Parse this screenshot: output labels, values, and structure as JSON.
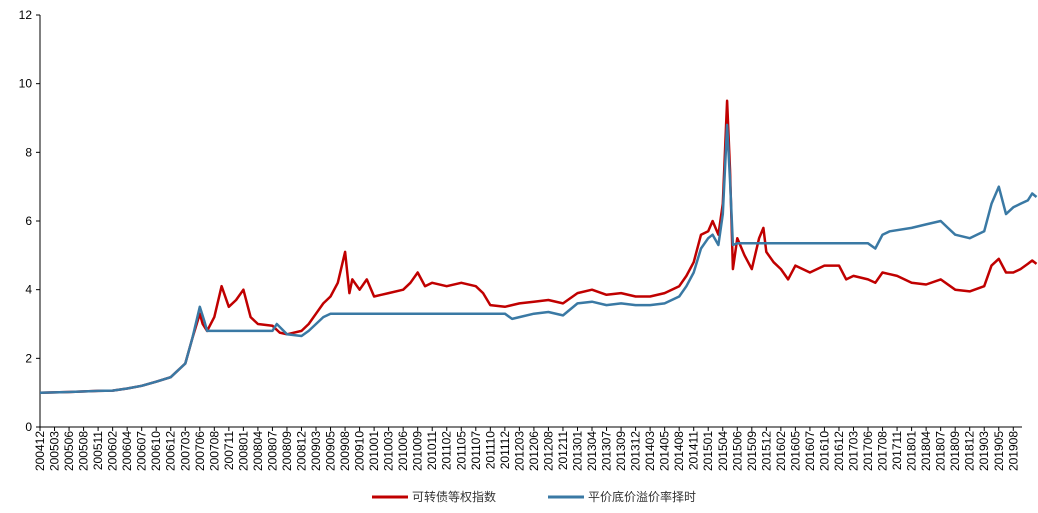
{
  "chart_data": {
    "type": "line",
    "title": "",
    "xlabel": "",
    "ylabel": "",
    "ylim": [
      0,
      12
    ],
    "yticks": [
      0,
      2,
      4,
      6,
      8,
      10,
      12
    ],
    "grid": false,
    "legend_position": "bottom",
    "x_ticks": [
      "200412",
      "200503",
      "200506",
      "200508",
      "200511",
      "200602",
      "200604",
      "200607",
      "200610",
      "200612",
      "200703",
      "200706",
      "200708",
      "200711",
      "200801",
      "200804",
      "200807",
      "200809",
      "200812",
      "200903",
      "200905",
      "200908",
      "200910",
      "201001",
      "201003",
      "201006",
      "201009",
      "201011",
      "201102",
      "201105",
      "201107",
      "201110",
      "201112",
      "201203",
      "201206",
      "201208",
      "201211",
      "201301",
      "201304",
      "201307",
      "201309",
      "201312",
      "201403",
      "201405",
      "201408",
      "201411",
      "201501",
      "201504",
      "201506",
      "201509",
      "201512",
      "201602",
      "201605",
      "201607",
      "201610",
      "201612",
      "201703",
      "201706",
      "201708",
      "201711",
      "201801",
      "201804",
      "201807",
      "201809",
      "201812",
      "201903",
      "201905",
      "201908"
    ],
    "series": [
      {
        "name": "可转债等权指数",
        "color": "#c00000",
        "points": [
          [
            0,
            1.0
          ],
          [
            2,
            1.02
          ],
          [
            4,
            1.05
          ],
          [
            5,
            1.06
          ],
          [
            6,
            1.12
          ],
          [
            7,
            1.2
          ],
          [
            8,
            1.32
          ],
          [
            9,
            1.45
          ],
          [
            10,
            1.85
          ],
          [
            10.5,
            2.6
          ],
          [
            11,
            3.3
          ],
          [
            11.2,
            3.0
          ],
          [
            11.5,
            2.8
          ],
          [
            12,
            3.2
          ],
          [
            12.5,
            4.1
          ],
          [
            13,
            3.5
          ],
          [
            13.5,
            3.7
          ],
          [
            14,
            4.0
          ],
          [
            14.5,
            3.2
          ],
          [
            15,
            3.0
          ],
          [
            16,
            2.95
          ],
          [
            16.5,
            2.75
          ],
          [
            17,
            2.7
          ],
          [
            18,
            2.8
          ],
          [
            18.5,
            3.0
          ],
          [
            19,
            3.3
          ],
          [
            19.5,
            3.6
          ],
          [
            20,
            3.8
          ],
          [
            20.5,
            4.2
          ],
          [
            21,
            5.1
          ],
          [
            21.3,
            3.9
          ],
          [
            21.5,
            4.3
          ],
          [
            22,
            4.0
          ],
          [
            22.5,
            4.3
          ],
          [
            23,
            3.8
          ],
          [
            24,
            3.9
          ],
          [
            25,
            4.0
          ],
          [
            25.5,
            4.2
          ],
          [
            26,
            4.5
          ],
          [
            26.5,
            4.1
          ],
          [
            27,
            4.2
          ],
          [
            28,
            4.1
          ],
          [
            29,
            4.2
          ],
          [
            30,
            4.1
          ],
          [
            30.5,
            3.9
          ],
          [
            31,
            3.55
          ],
          [
            32,
            3.5
          ],
          [
            33,
            3.6
          ],
          [
            34,
            3.65
          ],
          [
            35,
            3.7
          ],
          [
            36,
            3.6
          ],
          [
            37,
            3.9
          ],
          [
            38,
            4.0
          ],
          [
            39,
            3.85
          ],
          [
            40,
            3.9
          ],
          [
            41,
            3.8
          ],
          [
            42,
            3.8
          ],
          [
            43,
            3.9
          ],
          [
            44,
            4.1
          ],
          [
            44.5,
            4.4
          ],
          [
            45,
            4.8
          ],
          [
            45.5,
            5.6
          ],
          [
            46,
            5.7
          ],
          [
            46.3,
            6.0
          ],
          [
            46.7,
            5.6
          ],
          [
            47,
            6.5
          ],
          [
            47.3,
            9.5
          ],
          [
            47.5,
            7.5
          ],
          [
            47.7,
            4.6
          ],
          [
            48,
            5.5
          ],
          [
            48.5,
            5.0
          ],
          [
            49,
            4.6
          ],
          [
            49.5,
            5.5
          ],
          [
            49.8,
            5.8
          ],
          [
            50,
            5.1
          ],
          [
            50.5,
            4.8
          ],
          [
            51,
            4.6
          ],
          [
            51.5,
            4.3
          ],
          [
            52,
            4.7
          ],
          [
            53,
            4.5
          ],
          [
            54,
            4.7
          ],
          [
            55,
            4.7
          ],
          [
            55.5,
            4.3
          ],
          [
            56,
            4.4
          ],
          [
            57,
            4.3
          ],
          [
            57.5,
            4.2
          ],
          [
            58,
            4.5
          ],
          [
            59,
            4.4
          ],
          [
            60,
            4.2
          ],
          [
            61,
            4.15
          ],
          [
            62,
            4.3
          ],
          [
            63,
            4.0
          ],
          [
            64,
            3.95
          ],
          [
            65,
            4.1
          ],
          [
            65.5,
            4.7
          ],
          [
            66,
            4.9
          ],
          [
            66.5,
            4.5
          ],
          [
            67,
            4.5
          ],
          [
            67.5,
            4.6
          ],
          [
            68,
            4.75
          ],
          [
            68.3,
            4.85
          ],
          [
            68.6,
            4.75
          ]
        ]
      },
      {
        "name": "平价底价溢价率择时",
        "color": "#3a79a4",
        "points": [
          [
            0,
            1.0
          ],
          [
            2,
            1.02
          ],
          [
            4,
            1.05
          ],
          [
            5,
            1.06
          ],
          [
            6,
            1.12
          ],
          [
            7,
            1.2
          ],
          [
            8,
            1.32
          ],
          [
            9,
            1.45
          ],
          [
            10,
            1.85
          ],
          [
            10.5,
            2.6
          ],
          [
            11,
            3.5
          ],
          [
            11.3,
            3.1
          ],
          [
            11.5,
            2.8
          ],
          [
            16,
            2.8
          ],
          [
            16.3,
            3.0
          ],
          [
            17,
            2.7
          ],
          [
            18,
            2.65
          ],
          [
            18.5,
            2.8
          ],
          [
            19,
            3.0
          ],
          [
            19.5,
            3.2
          ],
          [
            20,
            3.3
          ],
          [
            32,
            3.3
          ],
          [
            32.5,
            3.15
          ],
          [
            33,
            3.2
          ],
          [
            34,
            3.3
          ],
          [
            35,
            3.35
          ],
          [
            36,
            3.25
          ],
          [
            37,
            3.6
          ],
          [
            38,
            3.65
          ],
          [
            39,
            3.55
          ],
          [
            40,
            3.6
          ],
          [
            41,
            3.55
          ],
          [
            42,
            3.55
          ],
          [
            43,
            3.6
          ],
          [
            44,
            3.8
          ],
          [
            44.5,
            4.1
          ],
          [
            45,
            4.5
          ],
          [
            45.5,
            5.2
          ],
          [
            46,
            5.5
          ],
          [
            46.3,
            5.6
          ],
          [
            46.7,
            5.3
          ],
          [
            47,
            6.2
          ],
          [
            47.3,
            8.8
          ],
          [
            47.5,
            7.2
          ],
          [
            47.7,
            5.3
          ],
          [
            48,
            5.35
          ],
          [
            57,
            5.35
          ],
          [
            57.5,
            5.2
          ],
          [
            58,
            5.6
          ],
          [
            58.5,
            5.7
          ],
          [
            60,
            5.8
          ],
          [
            61,
            5.9
          ],
          [
            62,
            6.0
          ],
          [
            62.5,
            5.8
          ],
          [
            63,
            5.6
          ],
          [
            64,
            5.5
          ],
          [
            65,
            5.7
          ],
          [
            65.5,
            6.5
          ],
          [
            66,
            7.0
          ],
          [
            66.5,
            6.2
          ],
          [
            67,
            6.4
          ],
          [
            67.5,
            6.5
          ],
          [
            68,
            6.6
          ],
          [
            68.3,
            6.8
          ],
          [
            68.6,
            6.7
          ]
        ]
      }
    ]
  }
}
